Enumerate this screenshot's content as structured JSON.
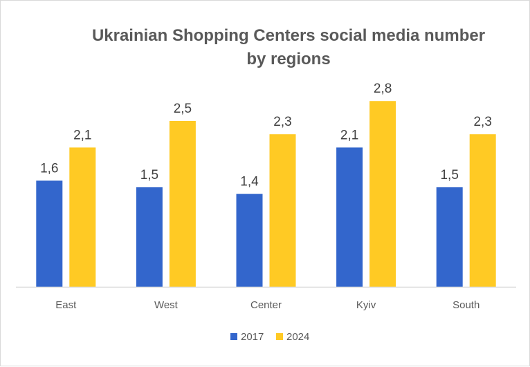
{
  "chart_data": {
    "type": "bar",
    "title": [
      "Ukrainian Shopping Centers social media number",
      "by regions"
    ],
    "categories": [
      "East",
      "West",
      "Center",
      "Kyiv",
      "South"
    ],
    "series": [
      {
        "name": "2017",
        "color": "#3366CC",
        "values": [
          1.6,
          1.5,
          1.4,
          2.1,
          1.5
        ],
        "labels": [
          "1,6",
          "1,5",
          "1,4",
          "2,1",
          "1,5"
        ]
      },
      {
        "name": "2024",
        "color": "#FFCA24",
        "values": [
          2.1,
          2.5,
          2.3,
          2.8,
          2.3
        ],
        "labels": [
          "2,1",
          "2,5",
          "2,3",
          "2,8",
          "2,3"
        ]
      }
    ],
    "xlabel": "",
    "ylabel": "",
    "ylim": [
      0,
      3
    ],
    "grid": false,
    "legend": "bottom"
  }
}
